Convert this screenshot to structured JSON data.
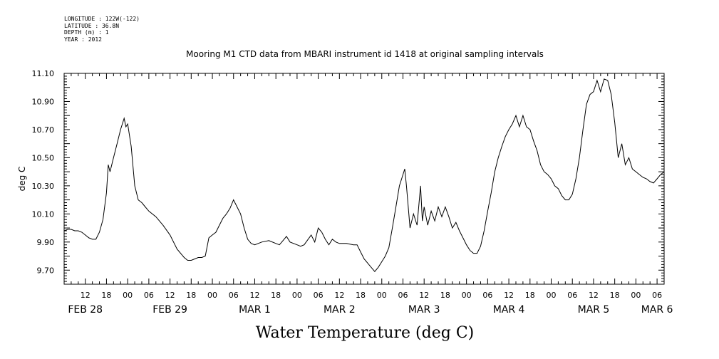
{
  "metadata": {
    "longitude": "LONGITUDE : 122W(-122)",
    "latitude": "LATITUDE : 36.8N",
    "depth": "DEPTH (m) : 1",
    "year": "YEAR : 2012"
  },
  "chart_data": {
    "type": "line",
    "title": "Mooring M1 CTD data from MBARI instrument id 1418 at original sampling intervals",
    "xlabel": "Water Temperature (deg C)",
    "ylabel": "deg C",
    "x_unit": "hours since 2012-02-27 06:00 UTC",
    "xlim": [
      0,
      170
    ],
    "ylim": [
      9.6,
      11.1
    ],
    "y_ticks": [
      9.7,
      9.8,
      9.9,
      10.0,
      10.1,
      10.2,
      10.3,
      10.4,
      10.5,
      10.6,
      10.7,
      10.8,
      10.9,
      11.0,
      11.1
    ],
    "y_tick_labels": [
      "9.70",
      "9.90",
      "10.10",
      "10.30",
      "10.50",
      "10.70",
      "10.90",
      "11.10"
    ],
    "x_hour_labels": [
      "12",
      "18",
      "00",
      "06",
      "12",
      "18",
      "00",
      "06",
      "12",
      "18",
      "00",
      "06",
      "12",
      "18",
      "00",
      "06",
      "12",
      "18",
      "00",
      "06",
      "12",
      "18",
      "00",
      "06",
      "12",
      "18",
      "00",
      "06"
    ],
    "date_labels": [
      "FEB 28",
      "FEB 29",
      "MAR 1",
      "MAR 2",
      "MAR 3",
      "MAR 4",
      "MAR 5",
      "MAR 6"
    ],
    "grid": false,
    "series": [
      {
        "values": [
          [
            0,
            9.98
          ],
          [
            1,
            9.99
          ],
          [
            2,
            9.99
          ],
          [
            3,
            9.98
          ],
          [
            4,
            9.98
          ],
          [
            5,
            9.97
          ],
          [
            6,
            9.95
          ],
          [
            7,
            9.93
          ],
          [
            8,
            9.92
          ],
          [
            9,
            9.92
          ],
          [
            10,
            9.97
          ],
          [
            11,
            10.06
          ],
          [
            12,
            10.25
          ],
          [
            12.5,
            10.45
          ],
          [
            13,
            10.4
          ],
          [
            14,
            10.5
          ],
          [
            15,
            10.6
          ],
          [
            16,
            10.7
          ],
          [
            17,
            10.78
          ],
          [
            17.5,
            10.72
          ],
          [
            18,
            10.74
          ],
          [
            19,
            10.58
          ],
          [
            20,
            10.3
          ],
          [
            21,
            10.2
          ],
          [
            22,
            10.18
          ],
          [
            23,
            10.15
          ],
          [
            24,
            10.12
          ],
          [
            26,
            10.08
          ],
          [
            28,
            10.02
          ],
          [
            30,
            9.95
          ],
          [
            32,
            9.85
          ],
          [
            34,
            9.79
          ],
          [
            35,
            9.77
          ],
          [
            36,
            9.77
          ],
          [
            37,
            9.78
          ],
          [
            38,
            9.79
          ],
          [
            39,
            9.79
          ],
          [
            40,
            9.8
          ],
          [
            41,
            9.93
          ],
          [
            42,
            9.95
          ],
          [
            43,
            9.97
          ],
          [
            44,
            10.02
          ],
          [
            45,
            10.07
          ],
          [
            46,
            10.1
          ],
          [
            47,
            10.14
          ],
          [
            48,
            10.2
          ],
          [
            49,
            10.15
          ],
          [
            50,
            10.1
          ],
          [
            51,
            10.0
          ],
          [
            52,
            9.92
          ],
          [
            53,
            9.89
          ],
          [
            54,
            9.88
          ],
          [
            56,
            9.9
          ],
          [
            58,
            9.91
          ],
          [
            60,
            9.89
          ],
          [
            61,
            9.88
          ],
          [
            62,
            9.91
          ],
          [
            63,
            9.94
          ],
          [
            64,
            9.9
          ],
          [
            66,
            9.88
          ],
          [
            67,
            9.87
          ],
          [
            68,
            9.88
          ],
          [
            70,
            9.95
          ],
          [
            71,
            9.9
          ],
          [
            72,
            10.0
          ],
          [
            73,
            9.97
          ],
          [
            74,
            9.92
          ],
          [
            75,
            9.88
          ],
          [
            76,
            9.92
          ],
          [
            77,
            9.9
          ],
          [
            78,
            9.89
          ],
          [
            80,
            9.89
          ],
          [
            82,
            9.88
          ],
          [
            83,
            9.88
          ],
          [
            84,
            9.83
          ],
          [
            85,
            9.78
          ],
          [
            86,
            9.75
          ],
          [
            87,
            9.72
          ],
          [
            88,
            9.69
          ],
          [
            89,
            9.72
          ],
          [
            90,
            9.76
          ],
          [
            91,
            9.8
          ],
          [
            92,
            9.86
          ],
          [
            93,
            10.0
          ],
          [
            94,
            10.15
          ],
          [
            95,
            10.3
          ],
          [
            96,
            10.38
          ],
          [
            96.5,
            10.42
          ],
          [
            97,
            10.3
          ],
          [
            98,
            10.0
          ],
          [
            99,
            10.1
          ],
          [
            100,
            10.02
          ],
          [
            101,
            10.3
          ],
          [
            101.5,
            10.05
          ],
          [
            102,
            10.15
          ],
          [
            103,
            10.02
          ],
          [
            104,
            10.12
          ],
          [
            105,
            10.05
          ],
          [
            106,
            10.15
          ],
          [
            107,
            10.08
          ],
          [
            108,
            10.15
          ],
          [
            109,
            10.08
          ],
          [
            110,
            10.0
          ],
          [
            111,
            10.04
          ],
          [
            112,
            9.98
          ],
          [
            113,
            9.93
          ],
          [
            114,
            9.88
          ],
          [
            115,
            9.84
          ],
          [
            116,
            9.82
          ],
          [
            117,
            9.82
          ],
          [
            118,
            9.87
          ],
          [
            119,
            9.98
          ],
          [
            120,
            10.12
          ],
          [
            121,
            10.25
          ],
          [
            122,
            10.4
          ],
          [
            123,
            10.5
          ],
          [
            124,
            10.58
          ],
          [
            125,
            10.65
          ],
          [
            126,
            10.7
          ],
          [
            127,
            10.74
          ],
          [
            128,
            10.8
          ],
          [
            129,
            10.72
          ],
          [
            130,
            10.8
          ],
          [
            131,
            10.72
          ],
          [
            132,
            10.7
          ],
          [
            133,
            10.62
          ],
          [
            134,
            10.55
          ],
          [
            135,
            10.45
          ],
          [
            136,
            10.4
          ],
          [
            137,
            10.38
          ],
          [
            138,
            10.35
          ],
          [
            139,
            10.3
          ],
          [
            140,
            10.28
          ],
          [
            141,
            10.23
          ],
          [
            142,
            10.2
          ],
          [
            143,
            10.2
          ],
          [
            144,
            10.24
          ],
          [
            145,
            10.35
          ],
          [
            146,
            10.5
          ],
          [
            147,
            10.7
          ],
          [
            148,
            10.88
          ],
          [
            149,
            10.95
          ],
          [
            150,
            10.97
          ],
          [
            151,
            11.05
          ],
          [
            152,
            10.97
          ],
          [
            153,
            11.06
          ],
          [
            154,
            11.05
          ],
          [
            155,
            10.95
          ],
          [
            156,
            10.75
          ],
          [
            157,
            10.5
          ],
          [
            158,
            10.6
          ],
          [
            159,
            10.45
          ],
          [
            160,
            10.5
          ],
          [
            161,
            10.42
          ],
          [
            162,
            10.4
          ],
          [
            163,
            10.38
          ],
          [
            164,
            10.36
          ],
          [
            165,
            10.35
          ],
          [
            166,
            10.33
          ],
          [
            167,
            10.32
          ],
          [
            168,
            10.35
          ],
          [
            169,
            10.38
          ],
          [
            170,
            10.4
          ]
        ]
      }
    ]
  }
}
